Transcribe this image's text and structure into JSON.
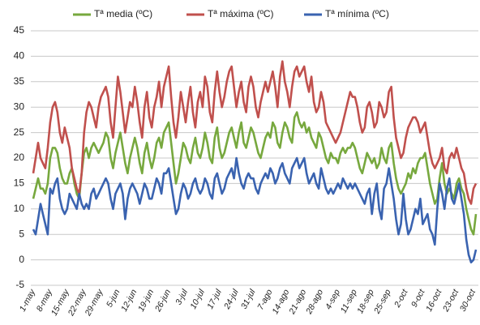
{
  "chart_data": {
    "type": "line",
    "categories": [
      "1-may",
      null,
      null,
      null,
      null,
      null,
      null,
      "8-may",
      null,
      null,
      null,
      null,
      null,
      null,
      "15-may",
      null,
      null,
      null,
      null,
      null,
      null,
      "22-may",
      null,
      null,
      null,
      null,
      null,
      null,
      "29-may",
      null,
      null,
      null,
      null,
      null,
      null,
      "5-jun",
      null,
      null,
      null,
      null,
      null,
      null,
      "12-jun",
      null,
      null,
      null,
      null,
      null,
      null,
      "19-jun",
      null,
      null,
      null,
      null,
      null,
      null,
      "26-jun",
      null,
      null,
      null,
      null,
      null,
      null,
      "3-jul",
      null,
      null,
      null,
      null,
      null,
      null,
      "10-jul",
      null,
      null,
      null,
      null,
      null,
      null,
      "17-jul",
      null,
      null,
      null,
      null,
      null,
      null,
      "24-jul",
      null,
      null,
      null,
      null,
      null,
      null,
      "31-jul",
      null,
      null,
      null,
      null,
      null,
      null,
      "7-ago",
      null,
      null,
      null,
      null,
      null,
      null,
      "14-ago",
      null,
      null,
      null,
      null,
      null,
      null,
      "21-ago",
      null,
      null,
      null,
      null,
      null,
      null,
      "28-ago",
      null,
      null,
      null,
      null,
      null,
      null,
      "4-sep",
      null,
      null,
      null,
      null,
      null,
      null,
      "11-sep",
      null,
      null,
      null,
      null,
      null,
      null,
      "18-sep",
      null,
      null,
      null,
      null,
      null,
      null,
      "25-sep",
      null,
      null,
      null,
      null,
      null,
      null,
      "2-oct",
      null,
      null,
      null,
      null,
      null,
      null,
      "9-oct",
      null,
      null,
      null,
      null,
      null,
      null,
      "16-oct",
      null,
      null,
      null,
      null,
      null,
      null,
      "23-oct",
      null,
      null,
      null,
      null,
      null,
      null,
      "30-oct",
      null
    ],
    "series": [
      {
        "name": "Tª media (ºC)",
        "color": "#77a83e",
        "values": [
          12,
          14,
          16,
          14,
          14,
          13,
          15,
          20,
          22,
          22,
          21,
          18,
          16,
          15,
          15,
          17,
          18,
          15,
          13,
          12,
          17,
          21,
          22,
          20,
          22,
          23,
          22,
          21,
          22,
          23,
          25,
          24,
          20,
          18,
          21,
          23,
          25,
          22,
          19,
          17,
          20,
          22,
          24,
          22,
          19,
          17,
          21,
          23,
          20,
          18,
          20,
          23,
          24,
          22,
          25,
          26,
          27,
          23,
          19,
          15,
          17,
          20,
          23,
          22,
          20,
          19,
          22,
          24,
          21,
          20,
          22,
          25,
          23,
          20,
          19,
          24,
          26,
          22,
          20,
          21,
          23,
          25,
          26,
          24,
          22,
          25,
          27,
          23,
          22,
          24,
          26,
          25,
          23,
          21,
          20,
          22,
          24,
          25,
          24,
          27,
          26,
          23,
          22,
          25,
          27,
          26,
          24,
          23,
          28,
          29,
          27,
          26,
          27,
          25,
          26,
          24,
          23,
          22,
          25,
          24,
          22,
          20,
          19,
          21,
          20,
          20,
          19,
          21,
          22,
          21,
          22,
          22,
          23,
          22,
          20,
          18,
          17,
          19,
          21,
          20,
          19,
          20,
          18,
          19,
          22,
          20,
          19,
          22,
          23,
          19,
          16,
          14,
          13,
          14,
          15,
          17,
          16,
          18,
          17,
          19,
          20,
          20,
          21,
          18,
          15,
          13,
          11,
          12,
          16,
          19,
          15,
          13,
          14,
          13,
          12,
          15,
          16,
          14,
          13,
          10,
          8,
          6,
          5,
          9
        ]
      },
      {
        "name": "Tª máxima (ºC)",
        "color": "#c0504d",
        "values": [
          17,
          20,
          23,
          20,
          19,
          18,
          22,
          27,
          30,
          31,
          29,
          25,
          23,
          26,
          24,
          22,
          18,
          16,
          14,
          13,
          17,
          25,
          29,
          31,
          30,
          28,
          26,
          30,
          32,
          33,
          34,
          32,
          27,
          24,
          30,
          36,
          33,
          29,
          25,
          28,
          31,
          30,
          34,
          31,
          27,
          24,
          30,
          33,
          28,
          26,
          30,
          32,
          35,
          30,
          34,
          36,
          38,
          32,
          27,
          24,
          28,
          33,
          30,
          27,
          31,
          34,
          29,
          26,
          31,
          33,
          30,
          36,
          34,
          29,
          27,
          33,
          37,
          33,
          30,
          32,
          35,
          37,
          38,
          34,
          30,
          33,
          35,
          31,
          29,
          34,
          36,
          34,
          30,
          28,
          31,
          33,
          35,
          33,
          35,
          37,
          34,
          30,
          36,
          39,
          35,
          33,
          30,
          34,
          37,
          38,
          36,
          37,
          38,
          35,
          33,
          36,
          31,
          29,
          30,
          33,
          31,
          27,
          26,
          25,
          24,
          23,
          24,
          25,
          27,
          29,
          31,
          33,
          32,
          32,
          30,
          27,
          25,
          26,
          30,
          31,
          29,
          26,
          27,
          31,
          30,
          28,
          29,
          33,
          34,
          28,
          24,
          22,
          20,
          21,
          24,
          26,
          27,
          28,
          28,
          27,
          25,
          26,
          27,
          24,
          21,
          19,
          18,
          19,
          20,
          22,
          18,
          17,
          20,
          21,
          20,
          22,
          20,
          18,
          17,
          14,
          12,
          11,
          14,
          15
        ]
      },
      {
        "name": "Tª mínima (ºC)",
        "color": "#3a63b0",
        "values": [
          6,
          5,
          8,
          11,
          9,
          7,
          5,
          14,
          13,
          15,
          16,
          12,
          10,
          9,
          10,
          13,
          12,
          11,
          10,
          13,
          11,
          10,
          11,
          10,
          13,
          14,
          12,
          13,
          14,
          15,
          16,
          15,
          12,
          10,
          13,
          14,
          15,
          13,
          8,
          12,
          14,
          15,
          14,
          13,
          11,
          13,
          15,
          14,
          12,
          12,
          14,
          16,
          15,
          13,
          17,
          17,
          18,
          15,
          12,
          9,
          10,
          13,
          15,
          14,
          12,
          13,
          15,
          16,
          14,
          13,
          14,
          16,
          15,
          13,
          12,
          16,
          17,
          15,
          13,
          14,
          16,
          17,
          18,
          16,
          20,
          17,
          15,
          14,
          16,
          17,
          16,
          16,
          14,
          13,
          15,
          16,
          17,
          16,
          18,
          17,
          15,
          16,
          18,
          19,
          17,
          16,
          15,
          18,
          19,
          20,
          18,
          19,
          20,
          17,
          15,
          16,
          17,
          15,
          14,
          18,
          16,
          14,
          13,
          14,
          13,
          14,
          15,
          14,
          16,
          15,
          14,
          15,
          14,
          15,
          14,
          13,
          12,
          11,
          13,
          14,
          9,
          13,
          15,
          10,
          8,
          14,
          15,
          18,
          15,
          12,
          8,
          5,
          7,
          13,
          8,
          5,
          6,
          8,
          10,
          9,
          12,
          7,
          8,
          9,
          6,
          5,
          3,
          10,
          15,
          13,
          10,
          14,
          16,
          12,
          11,
          13,
          15,
          12,
          9,
          4,
          1,
          -0.5,
          0,
          2
        ]
      }
    ],
    "ylim": [
      -5,
      45
    ],
    "yticks": [
      -5,
      0,
      5,
      10,
      15,
      20,
      25,
      30,
      35,
      40,
      45
    ],
    "grid": true
  }
}
